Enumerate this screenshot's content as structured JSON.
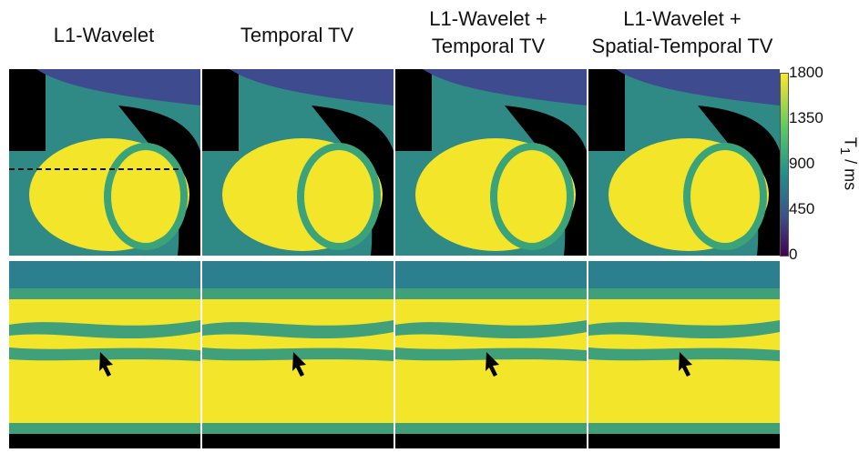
{
  "titles": [
    {
      "line1": "L1-Wavelet",
      "line2": ""
    },
    {
      "line1": "Temporal TV",
      "line2": ""
    },
    {
      "line1": "L1-Wavelet +",
      "line2": "Temporal TV"
    },
    {
      "line1": "L1-Wavelet +",
      "line2": "Spatial-Temporal TV"
    }
  ],
  "colorbar": {
    "ticks": [
      "1800",
      "1350",
      "900",
      "450",
      "0"
    ],
    "unit": "T",
    "unit_sub": "1",
    "unit_sep": " / ",
    "unit_rest": "ms"
  },
  "colors": {
    "yellow": "#f3e626",
    "green": "#3fa07a",
    "teal": "#2b7f8e",
    "purple": "#3e3a8a",
    "black": "#000000"
  }
}
